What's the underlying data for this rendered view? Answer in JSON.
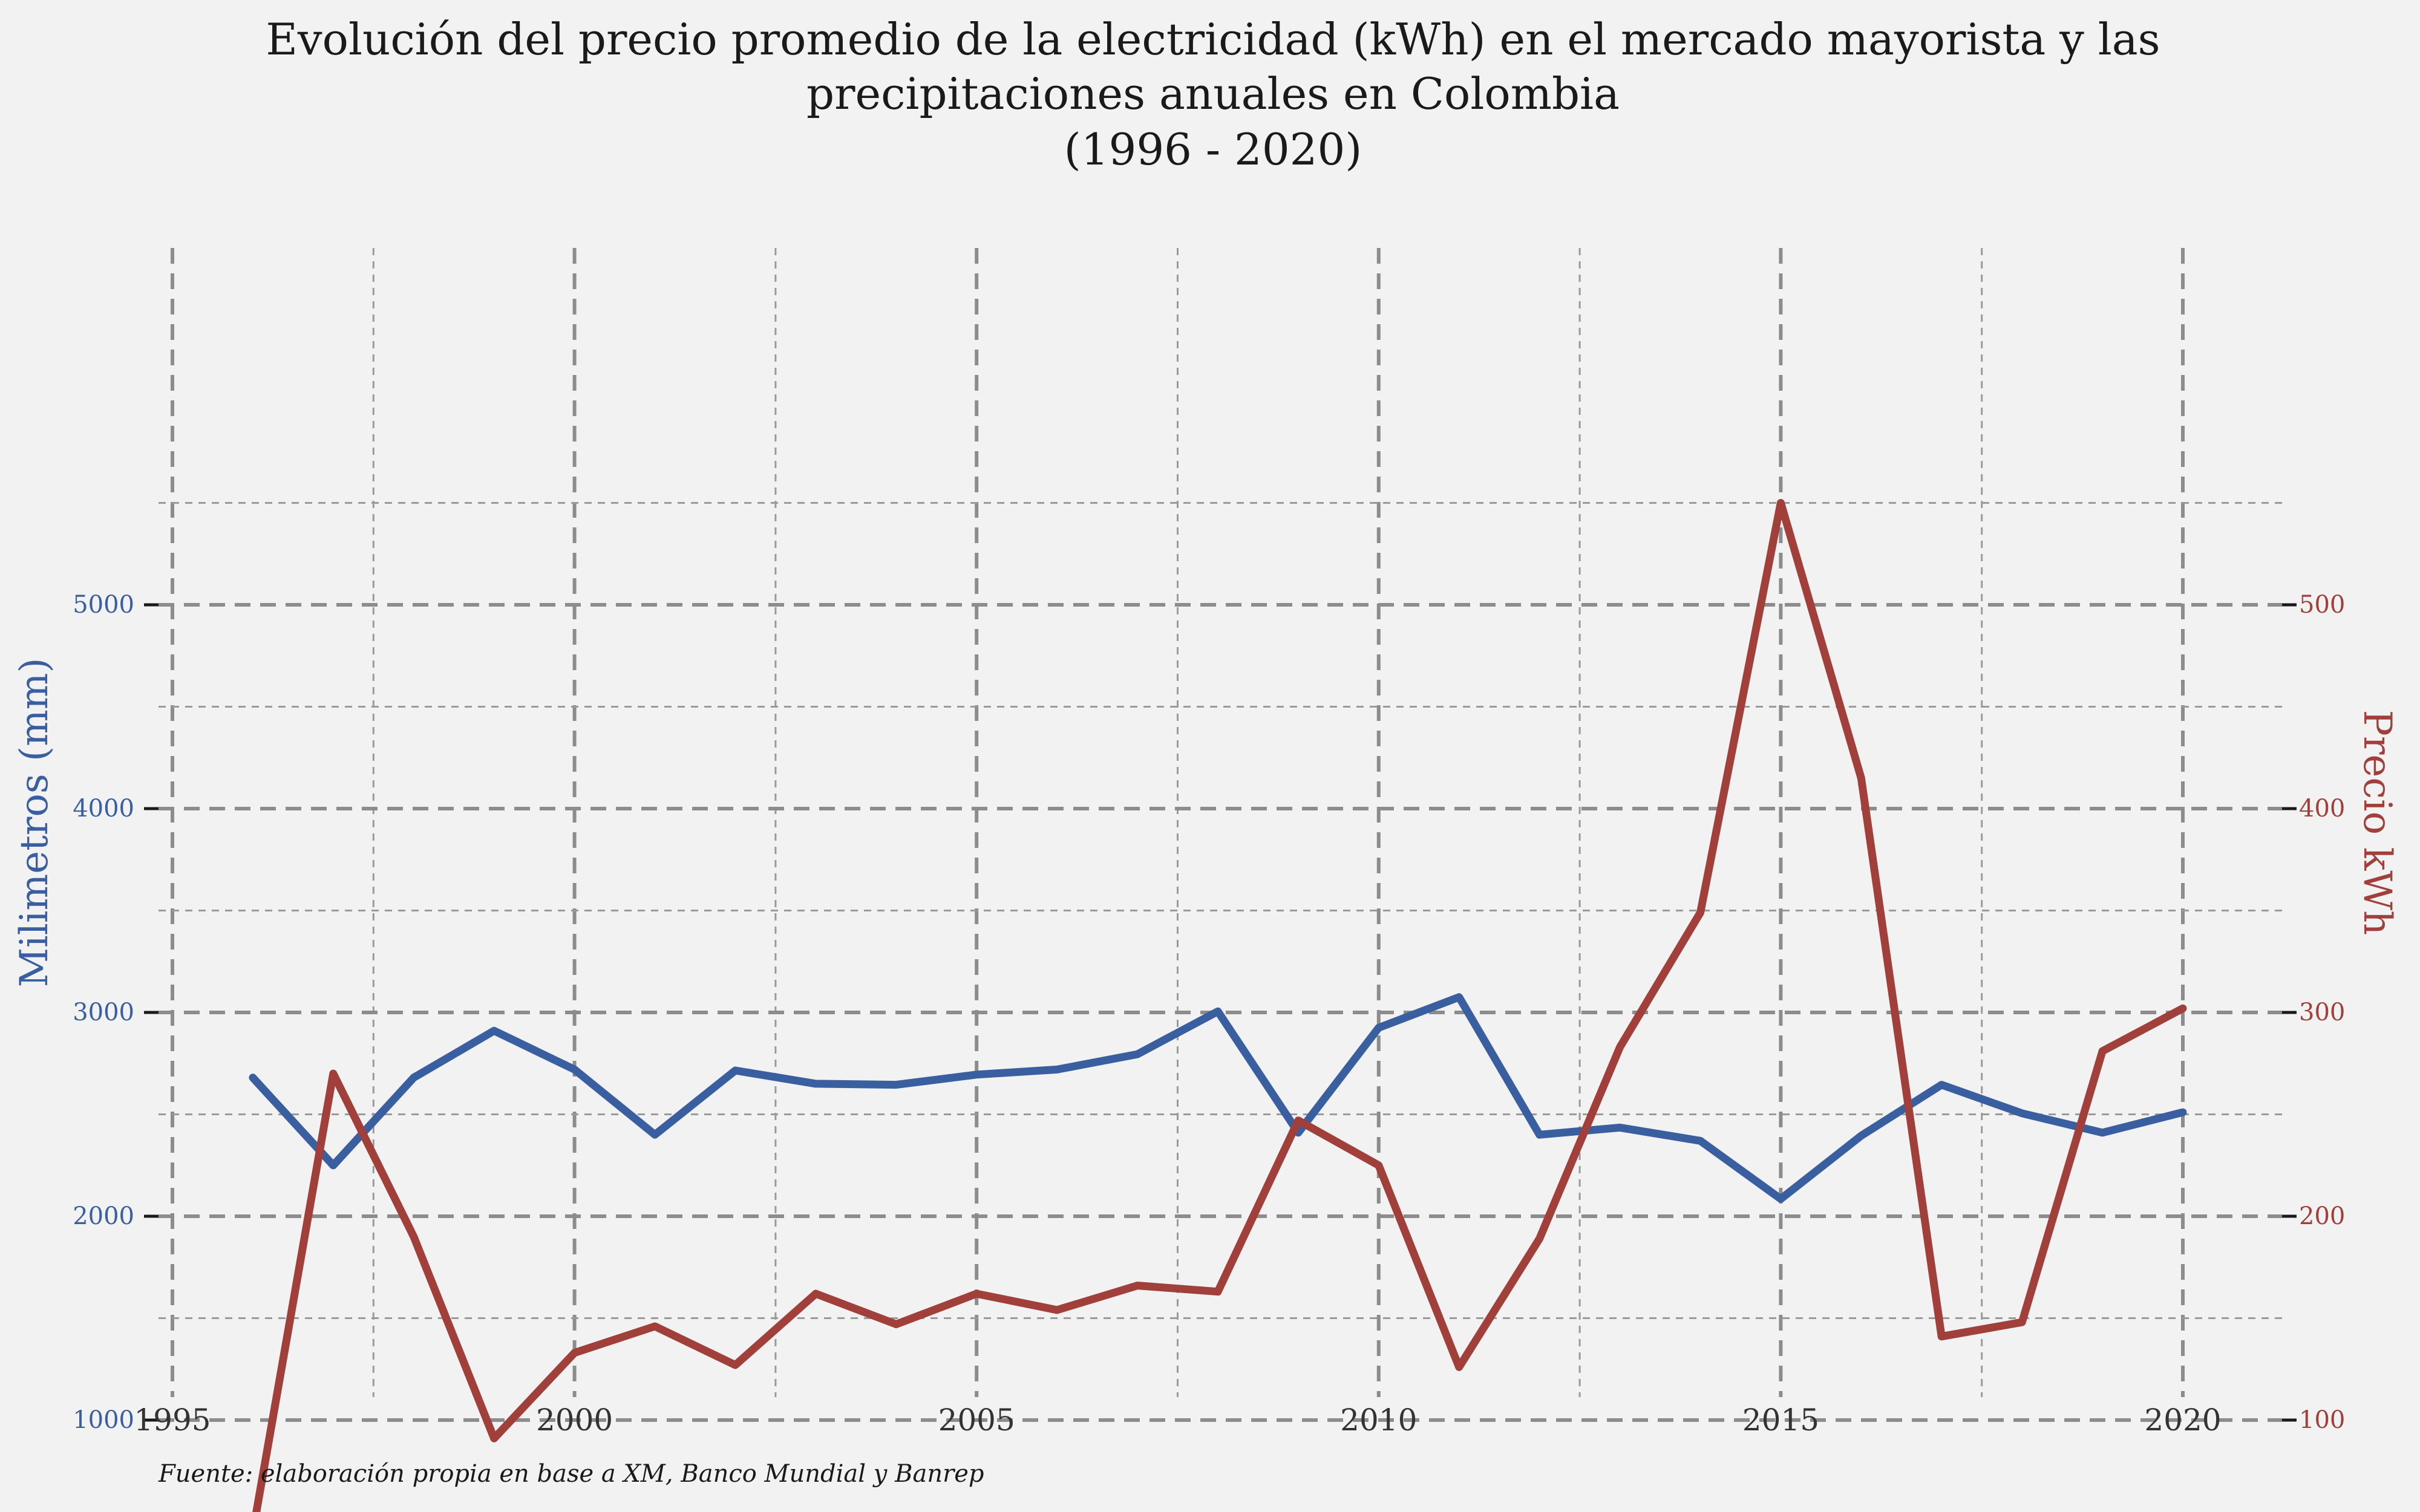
{
  "chart_data": {
    "type": "line",
    "title": [
      "Evolución del precio promedio de la electricidad (kWh) en el mercado mayorista y las",
      "precipitaciones anuales en Colombia",
      "(1996 - 2020)"
    ],
    "ylabel_left": "Milimetros (mm)",
    "ylabel_right": "Precio kWh",
    "caption": "Fuente: elaboración propia en base a XM, Banco Mundial y Banrep",
    "xlim": [
      1995,
      2021
    ],
    "xticks": [
      "1995",
      "2000",
      "2005",
      "2010",
      "2015",
      "2020"
    ],
    "ylim_left": [
      400,
      5500
    ],
    "yticks_left": [
      "1000",
      "2000",
      "3000",
      "4000",
      "5000"
    ],
    "ylim_right": [
      40,
      550
    ],
    "yticks_right": [
      "100",
      "200",
      "300",
      "400",
      "500"
    ],
    "grid": true,
    "x": [
      1996,
      1997,
      1998,
      1999,
      2000,
      2001,
      2002,
      2003,
      2004,
      2005,
      2006,
      2007,
      2008,
      2009,
      2010,
      2011,
      2012,
      2013,
      2014,
      2015,
      2016,
      2017,
      2018,
      2019,
      2020
    ],
    "series": [
      {
        "axis": "left",
        "color": "#3a5fa0",
        "values": [
          2680,
          2250,
          2680,
          2910,
          2720,
          2400,
          2715,
          2650,
          2645,
          2695,
          2720,
          2795,
          3005,
          2410,
          2925,
          3075,
          2400,
          2435,
          2370,
          2085,
          2395,
          2645,
          2505,
          2410,
          2510
        ]
      },
      {
        "axis": "right",
        "color": "#a13f3a",
        "values": [
          45,
          270,
          190,
          91,
          133,
          146,
          127,
          162,
          147,
          162,
          154,
          166,
          163,
          247,
          225,
          126,
          189,
          283,
          349,
          550,
          415,
          141,
          148,
          281,
          302
        ]
      }
    ]
  }
}
